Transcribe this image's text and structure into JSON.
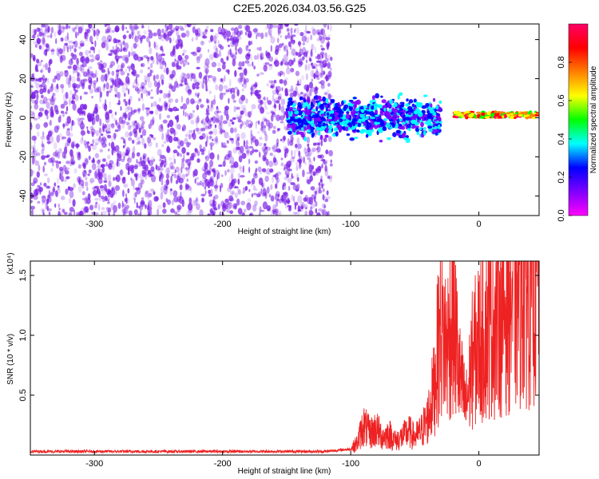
{
  "title": "C2E5.2026.034.03.56.G25",
  "colors": {
    "snr_line": "#ee2222",
    "scatter_base": "#7a1ee6",
    "colorbar": [
      "#ff00ff",
      "#7f00ff",
      "#0000ff",
      "#00ffff",
      "#00ff00",
      "#ffff00",
      "#ff7f00",
      "#ff0000",
      "#ff0066"
    ]
  },
  "chart_data": [
    {
      "type": "heatmap",
      "xlabel": "Height of straight line (km)",
      "ylabel": "Frequency (Hz)",
      "xlim": [
        -350,
        47
      ],
      "ylim": [
        -50,
        48
      ],
      "xticks": [
        -300,
        -200,
        -100,
        0
      ],
      "yticks": [
        -40,
        -20,
        0,
        20,
        40
      ],
      "grid": false,
      "colorbar": {
        "label": "Normalized spectral amplitude",
        "range": [
          0,
          1
        ],
        "ticks": [
          0.0,
          0.2,
          0.4,
          0.6,
          0.8
        ]
      },
      "regions": [
        {
          "x": [
            -350,
            -115
          ],
          "y": [
            -50,
            48
          ],
          "amplitude": 0.05
        },
        {
          "x": [
            -150,
            -30
          ],
          "y": [
            -10,
            10
          ],
          "amplitude": 0.35
        },
        {
          "x": [
            -20,
            47
          ],
          "y": [
            0,
            3
          ],
          "amplitude": 0.95
        }
      ]
    },
    {
      "type": "line",
      "xlabel": "Height of straight line (km)",
      "ylabel": "SNR (10 * v/v)",
      "y_multiplier": "(x10⁴)",
      "xlim": [
        -350,
        47
      ],
      "ylim": [
        0,
        1.62
      ],
      "xticks": [
        -300,
        -200,
        -100,
        0
      ],
      "yticks": [
        0.5,
        1.0,
        1.5
      ],
      "ytick_labels": [
        "0.5",
        "1.0",
        "1.5"
      ],
      "grid": false,
      "series": [
        {
          "x": [
            -350,
            -300,
            -250,
            -200,
            -150,
            -120,
            -100,
            -95,
            -90,
            -85,
            -80,
            -75,
            -70,
            -65,
            -60,
            -55,
            -50,
            -45,
            -40,
            -35,
            -30,
            -25,
            -20,
            -15,
            -10,
            -5,
            0,
            5,
            10,
            15,
            20,
            25,
            30,
            35,
            40,
            45
          ],
          "y": [
            0.03,
            0.03,
            0.03,
            0.03,
            0.03,
            0.03,
            0.05,
            0.1,
            0.25,
            0.18,
            0.22,
            0.15,
            0.18,
            0.12,
            0.15,
            0.2,
            0.15,
            0.2,
            0.3,
            0.55,
            1.1,
            0.9,
            1.2,
            0.65,
            0.4,
            0.8,
            0.95,
            1.05,
            1.1,
            1.2,
            1.25,
            1.35,
            1.4,
            1.45,
            1.5,
            1.48
          ]
        }
      ]
    }
  ]
}
